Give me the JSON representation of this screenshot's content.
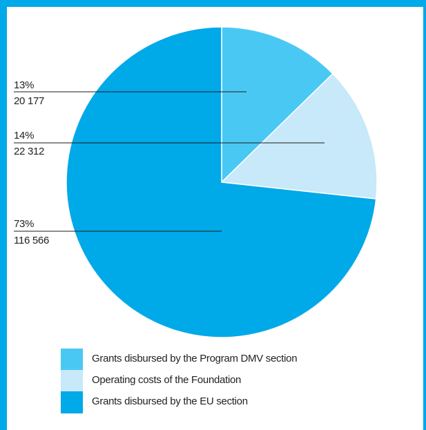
{
  "chart_data": {
    "type": "pie",
    "slices": [
      {
        "label": "Grants disbursed by the Program DMV section",
        "percent": "13%",
        "value": 20177,
        "value_text": "20 177",
        "color": "#4ac8f4"
      },
      {
        "label": "Operating costs of the Foundation",
        "percent": "14%",
        "value": 22312,
        "value_text": "22 312",
        "color": "#c7e9f9"
      },
      {
        "label": "Grants disbursed by the EU section",
        "percent": "73%",
        "value": 116566,
        "value_text": "116 566",
        "color": "#00a9e8"
      }
    ],
    "start": "12 o'clock",
    "direction": "clockwise",
    "legend_position": "bottom"
  },
  "colors": {
    "frame": "#00a9e8"
  }
}
